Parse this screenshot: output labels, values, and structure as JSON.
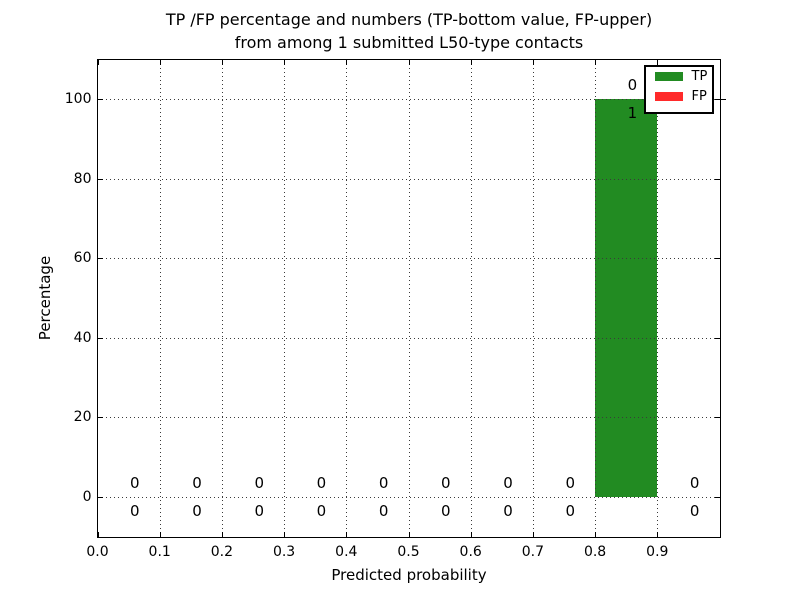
{
  "title": {
    "line1": "TP /FP percentage and numbers (TP-bottom value, FP-upper)",
    "line2": "from among 1 submitted L50-type contacts"
  },
  "axes": {
    "x_label": "Predicted probability",
    "y_label": "Percentage"
  },
  "legend": {
    "items": [
      {
        "label": "TP",
        "color": "#228B22"
      },
      {
        "label": "FP",
        "color": "#FF2A2A"
      }
    ]
  },
  "chart_data": {
    "type": "bar",
    "title": "TP /FP percentage and numbers (TP-bottom value, FP-upper) from among 1 submitted L50-type contacts",
    "xlabel": "Predicted probability",
    "ylabel": "Percentage",
    "xlim": [
      0.0,
      1.0
    ],
    "ylim": [
      -10,
      110
    ],
    "grid": true,
    "grid_style": "dotted",
    "legend_position": "upper right",
    "x_tick_labels": [
      "0.0",
      "0.1",
      "0.2",
      "0.3",
      "0.4",
      "0.5",
      "0.6",
      "0.7",
      "0.8",
      "0.9"
    ],
    "y_tick_labels": [
      "0",
      "20",
      "40",
      "60",
      "80",
      "100"
    ],
    "bin_left_edges": [
      0.0,
      0.1,
      0.2,
      0.3,
      0.4,
      0.5,
      0.6,
      0.7,
      0.8,
      0.9
    ],
    "bin_width": 0.1,
    "series": [
      {
        "name": "TP",
        "color": "#228B22",
        "percent": [
          0,
          0,
          0,
          0,
          0,
          0,
          0,
          0,
          100,
          0
        ],
        "counts": [
          0,
          0,
          0,
          0,
          0,
          0,
          0,
          0,
          1,
          0
        ],
        "count_label_row": "lower"
      },
      {
        "name": "FP",
        "color": "#FF2A2A",
        "percent": [
          0,
          0,
          0,
          0,
          0,
          0,
          0,
          0,
          0,
          0
        ],
        "counts": [
          0,
          0,
          0,
          0,
          0,
          0,
          0,
          0,
          0,
          0
        ],
        "count_label_row": "upper"
      }
    ]
  }
}
